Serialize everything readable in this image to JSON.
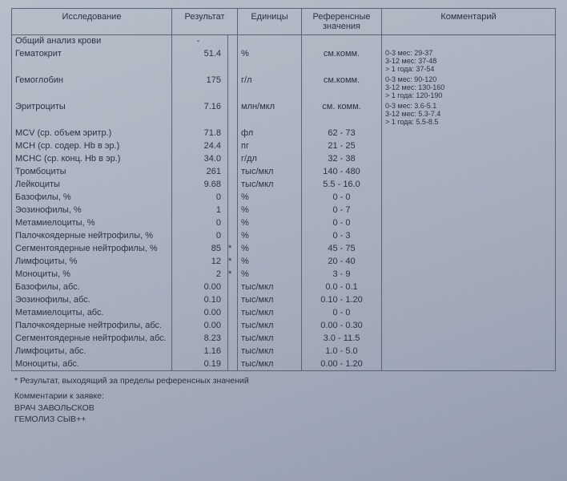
{
  "headers": {
    "name": "Исследование",
    "result": "Результат",
    "units": "Единицы",
    "ref": "Референсные значения",
    "comment": "Комментарий"
  },
  "section_title": "Общий анализ крови",
  "rows": [
    {
      "name": "Гематокрит",
      "result": "51.4",
      "star": "",
      "units": "%",
      "ref": "см.комм.",
      "comment": "0-3 мес: 29-37\n3-12 мес: 37-48\n> 1 года: 37-54"
    },
    {
      "name": "Гемоглобин",
      "result": "175",
      "star": "",
      "units": "г/л",
      "ref": "см.комм.",
      "comment": "0-3 мес: 90-120\n3-12 мес: 130-160\n> 1 года: 120-190"
    },
    {
      "name": "Эритроциты",
      "result": "7.16",
      "star": "",
      "units": "млн/мкл",
      "ref": "см. комм.",
      "comment": "0-3 мес: 3.6-5.1\n3-12 мес: 5.3-7.4\n> 1 года: 5.5-8.5"
    },
    {
      "name": "MCV (ср. объем эритр.)",
      "result": "71.8",
      "star": "",
      "units": "фл",
      "ref": "62 - 73",
      "comment": ""
    },
    {
      "name": "MCH (ср. содер. Hb в эр.)",
      "result": "24.4",
      "star": "",
      "units": "пг",
      "ref": "21 - 25",
      "comment": ""
    },
    {
      "name": "MCHC (ср. конц. Hb в эр.)",
      "result": "34.0",
      "star": "",
      "units": "г/дл",
      "ref": "32 - 38",
      "comment": ""
    },
    {
      "name": "Тромбоциты",
      "result": "261",
      "star": "",
      "units": "тыс/мкл",
      "ref": "140 - 480",
      "comment": ""
    },
    {
      "name": "Лейкоциты",
      "result": "9.68",
      "star": "",
      "units": "тыс/мкл",
      "ref": "5.5 - 16.0",
      "comment": ""
    },
    {
      "name": "Базофилы, %",
      "result": "0",
      "star": "",
      "units": "%",
      "ref": "0 - 0",
      "comment": ""
    },
    {
      "name": "Эозинофилы, %",
      "result": "1",
      "star": "",
      "units": "%",
      "ref": "0 - 7",
      "comment": ""
    },
    {
      "name": "Метамиелоциты, %",
      "result": "0",
      "star": "",
      "units": "%",
      "ref": "0 - 0",
      "comment": ""
    },
    {
      "name": "Палочкоядерные нейтрофилы, %",
      "result": "0",
      "star": "",
      "units": "%",
      "ref": "0 - 3",
      "comment": ""
    },
    {
      "name": "Сегментоядерные нейтрофилы, %",
      "result": "85",
      "star": "*",
      "units": "%",
      "ref": "45 - 75",
      "comment": ""
    },
    {
      "name": "Лимфоциты, %",
      "result": "12",
      "star": "*",
      "units": "%",
      "ref": "20 - 40",
      "comment": ""
    },
    {
      "name": "Моноциты, %",
      "result": "2",
      "star": "*",
      "units": "%",
      "ref": "3 - 9",
      "comment": ""
    },
    {
      "name": "Базофилы, абс.",
      "result": "0.00",
      "star": "",
      "units": "тыс/мкл",
      "ref": "0.0 - 0.1",
      "comment": ""
    },
    {
      "name": "Эозинофилы, абс.",
      "result": "0.10",
      "star": "",
      "units": "тыс/мкл",
      "ref": "0.10 - 1.20",
      "comment": ""
    },
    {
      "name": "Метамиелоциты, абс.",
      "result": "0.00",
      "star": "",
      "units": "тыс/мкл",
      "ref": "0 - 0",
      "comment": ""
    },
    {
      "name": "Палочкоядерные нейтрофилы, абс.",
      "result": "0.00",
      "star": "",
      "units": "тыс/мкл",
      "ref": "0.00 - 0.30",
      "comment": ""
    },
    {
      "name": "Сегментоядерные нейтрофилы, абс.",
      "result": "8.23",
      "star": "",
      "units": "тыс/мкл",
      "ref": "3.0 - 11.5",
      "comment": ""
    },
    {
      "name": "Лимфоциты, абс.",
      "result": "1.16",
      "star": "",
      "units": "тыс/мкл",
      "ref": "1.0 - 5.0",
      "comment": ""
    },
    {
      "name": "Моноциты, абс.",
      "result": "0.19",
      "star": "",
      "units": "тыс/мкл",
      "ref": "0.00 - 1.20",
      "comment": ""
    }
  ],
  "footnote": "* Результат, выходящий за пределы референсных значений",
  "footer": {
    "heading": "Комментарии к заявке:",
    "line1": "ВРАЧ ЗАВОЛЬСКОВ",
    "line2": "ГЕМОЛИЗ СЫВ++"
  }
}
